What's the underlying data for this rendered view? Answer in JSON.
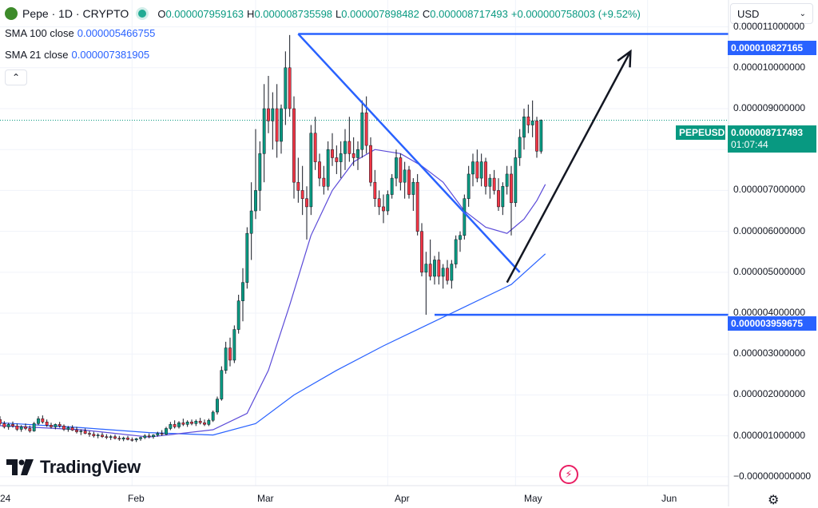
{
  "header": {
    "symbol_title": "Pepe · 1D · CRYPTO",
    "ohlc": [
      {
        "label": "O",
        "value": "0.000007959163"
      },
      {
        "label": "H",
        "value": "0.000008735598"
      },
      {
        "label": "L",
        "value": "0.000007898482"
      },
      {
        "label": "C",
        "value": "0.000008717493"
      }
    ],
    "change": "+0.000000758003 (+9.52%)",
    "currency": "USD"
  },
  "indicators": [
    {
      "name": "SMA 100 close",
      "value": "0.000005466755",
      "color": "#2962ff"
    },
    {
      "name": "SMA 21 close",
      "value": "0.000007381905",
      "color": "#5b4ad8"
    }
  ],
  "price_axis": {
    "labels": [
      "0.000011000000",
      "0.000010000000",
      "0.000009000000",
      "0.000008000000",
      "0.000007000000",
      "0.000006000000",
      "0.000005000000",
      "0.000004000000",
      "0.000003000000",
      "0.000002000000",
      "0.000001000000",
      "−0.000000000000"
    ],
    "tags": [
      {
        "text": "0.000010827165",
        "color": "#2962ff"
      },
      {
        "text": "0.000003959675",
        "color": "#2962ff"
      }
    ],
    "current": {
      "symbol": "PEPEUSD",
      "price": "0.000008717493",
      "countdown": "01:07:44",
      "color": "#089981"
    }
  },
  "time_axis": {
    "labels": [
      "24",
      "Feb",
      "Mar",
      "Apr",
      "May",
      "Jun"
    ]
  },
  "branding": {
    "name": "TradingView"
  },
  "chart_data": {
    "type": "candlestick",
    "x_range": [
      "2024-01-01",
      "2024-06-20"
    ],
    "ylim": [
      -1e-07,
      1.15e-05
    ],
    "candles_start": "2024-01-01",
    "candles": [
      [
        1.4e-06,
        1.48e-06,
        1.26e-06,
        1.3e-06
      ],
      [
        1.3e-06,
        1.36e-06,
        1.18e-06,
        1.22e-06
      ],
      [
        1.22e-06,
        1.32e-06,
        1.15e-06,
        1.28e-06
      ],
      [
        1.28e-06,
        1.35e-06,
        1.2e-06,
        1.24e-06
      ],
      [
        1.24e-06,
        1.3e-06,
        1.12e-06,
        1.16e-06
      ],
      [
        1.16e-06,
        1.26e-06,
        1.1e-06,
        1.22e-06
      ],
      [
        1.22e-06,
        1.3e-06,
        1.14e-06,
        1.18e-06
      ],
      [
        1.18e-06,
        1.25e-06,
        1.08e-06,
        1.12e-06
      ],
      [
        1.12e-06,
        1.34e-06,
        1.1e-06,
        1.3e-06
      ],
      [
        1.3e-06,
        1.48e-06,
        1.26e-06,
        1.42e-06
      ],
      [
        1.42e-06,
        1.5e-06,
        1.3e-06,
        1.34e-06
      ],
      [
        1.34e-06,
        1.4e-06,
        1.22e-06,
        1.26e-06
      ],
      [
        1.26e-06,
        1.32e-06,
        1.18e-06,
        1.22e-06
      ],
      [
        1.22e-06,
        1.3e-06,
        1.16e-06,
        1.28e-06
      ],
      [
        1.28e-06,
        1.34e-06,
        1.2e-06,
        1.24e-06
      ],
      [
        1.24e-06,
        1.28e-06,
        1.12e-06,
        1.16e-06
      ],
      [
        1.16e-06,
        1.24e-06,
        1.1e-06,
        1.2e-06
      ],
      [
        1.2e-06,
        1.26e-06,
        1.12e-06,
        1.14e-06
      ],
      [
        1.14e-06,
        1.22e-06,
        1.06e-06,
        1.1e-06
      ],
      [
        1.1e-06,
        1.16e-06,
        1.02e-06,
        1.12e-06
      ],
      [
        1.12e-06,
        1.18e-06,
        1.04e-06,
        1.06e-06
      ],
      [
        1.06e-06,
        1.12e-06,
        9.8e-07,
        1.04e-06
      ],
      [
        1.04e-06,
        1.1e-06,
        9.6e-07,
        1e-06
      ],
      [
        1e-06,
        1.06e-06,
        9.4e-07,
        1.02e-06
      ],
      [
        1.02e-06,
        1.08e-06,
        9.5e-07,
        9.8e-07
      ],
      [
        9.8e-07,
        1.04e-06,
        9.2e-07,
        9.6e-07
      ],
      [
        9.6e-07,
        1.02e-06,
        9e-07,
        9.8e-07
      ],
      [
        9.8e-07,
        1.03e-06,
        9.1e-07,
        9.4e-07
      ],
      [
        9.4e-07,
        1e-06,
        8.8e-07,
        9.2e-07
      ],
      [
        9.2e-07,
        9.8e-07,
        8.7e-07,
        9.5e-07
      ],
      [
        9.5e-07,
        1e-06,
        8.9e-07,
        9.1e-07
      ],
      [
        9.1e-07,
        9.6e-07,
        8.6e-07,
        9e-07
      ],
      [
        9e-07,
        9.5e-07,
        8.5e-07,
        9.3e-07
      ],
      [
        9.3e-07,
        9.8e-07,
        8.8e-07,
        9.6e-07
      ],
      [
        9.6e-07,
        1.04e-06,
        9.2e-07,
        1e-06
      ],
      [
        1e-06,
        1.06e-06,
        9.4e-07,
        9.8e-07
      ],
      [
        9.8e-07,
        1.04e-06,
        9.3e-07,
        1.02e-06
      ],
      [
        1.02e-06,
        1.1e-06,
        9.8e-07,
        1.06e-06
      ],
      [
        1.06e-06,
        1.14e-06,
        1e-06,
        1.04e-06
      ],
      [
        1.04e-06,
        1.22e-06,
        1.02e-06,
        1.18e-06
      ],
      [
        1.18e-06,
        1.34e-06,
        1.14e-06,
        1.28e-06
      ],
      [
        1.28e-06,
        1.38e-06,
        1.18e-06,
        1.22e-06
      ],
      [
        1.22e-06,
        1.36e-06,
        1.18e-06,
        1.32e-06
      ],
      [
        1.32e-06,
        1.42e-06,
        1.24e-06,
        1.28e-06
      ],
      [
        1.28e-06,
        1.38e-06,
        1.22e-06,
        1.34e-06
      ],
      [
        1.34e-06,
        1.4e-06,
        1.26e-06,
        1.3e-06
      ],
      [
        1.3e-06,
        1.4e-06,
        1.24e-06,
        1.36e-06
      ],
      [
        1.36e-06,
        1.44e-06,
        1.28e-06,
        1.32e-06
      ],
      [
        1.32e-06,
        1.4e-06,
        1.24e-06,
        1.28e-06
      ],
      [
        1.28e-06,
        1.42e-06,
        1.24e-06,
        1.38e-06
      ],
      [
        1.38e-06,
        1.62e-06,
        1.34e-06,
        1.58e-06
      ],
      [
        1.58e-06,
        1.96e-06,
        1.52e-06,
        1.9e-06
      ],
      [
        1.9e-06,
        2.7e-06,
        1.86e-06,
        2.6e-06
      ],
      [
        2.6e-06,
        3.3e-06,
        2.52e-06,
        3.15e-06
      ],
      [
        3.15e-06,
        3.4e-06,
        2.7e-06,
        2.85e-06
      ],
      [
        2.85e-06,
        3.7e-06,
        2.78e-06,
        3.6e-06
      ],
      [
        3.6e-06,
        4.45e-06,
        3.5e-06,
        4.3e-06
      ],
      [
        4.3e-06,
        5.1e-06,
        3.8e-06,
        4.75e-06
      ],
      [
        4.75e-06,
        6.1e-06,
        4.6e-06,
        5.95e-06
      ],
      [
        5.95e-06,
        7.2e-06,
        5.3e-06,
        6.5e-06
      ],
      [
        6.5e-06,
        8.5e-06,
        6.3e-06,
        7e-06
      ],
      [
        7e-06,
        8.2e-06,
        6.5e-06,
        7.9e-06
      ],
      [
        7.9e-06,
        9.6e-06,
        7.2e-06,
        9e-06
      ],
      [
        9e-06,
        9.8e-06,
        8.4e-06,
        8.7e-06
      ],
      [
        8.7e-06,
        9.4e-06,
        8e-06,
        9e-06
      ],
      [
        9e-06,
        9.6e-06,
        7.8e-06,
        8.2e-06
      ],
      [
        8.2e-06,
        9.1e-06,
        7.9e-06,
        9e-06
      ],
      [
        9e-06,
        1.04e-05,
        8.6e-06,
        1e-05
      ],
      [
        1e-05,
        1.08e-05,
        8.8e-06,
        9e-06
      ],
      [
        9e-06,
        9.3e-06,
        6.8e-06,
        7.2e-06
      ],
      [
        7.2e-06,
        7.8e-06,
        6.7e-06,
        7e-06
      ],
      [
        7e-06,
        7.6e-06,
        6.4e-06,
        6.8e-06
      ],
      [
        6.8e-06,
        7.1e-06,
        5.8e-06,
        6.6e-06
      ],
      [
        6.6e-06,
        8.6e-06,
        6.4e-06,
        8.4e-06
      ],
      [
        8.4e-06,
        8.8e-06,
        7.5e-06,
        7.7e-06
      ],
      [
        7.7e-06,
        7.9e-06,
        7.1e-06,
        7.3e-06
      ],
      [
        7.3e-06,
        7.6e-06,
        6.9e-06,
        7.1e-06
      ],
      [
        7.1e-06,
        8.2e-06,
        7e-06,
        8e-06
      ],
      [
        8e-06,
        8.4e-06,
        7.6e-06,
        7.8e-06
      ],
      [
        7.8e-06,
        8.1e-06,
        7.4e-06,
        7.7e-06
      ],
      [
        7.7e-06,
        8.2e-06,
        7.3e-06,
        7.9e-06
      ],
      [
        7.9e-06,
        8.5e-06,
        7.5e-06,
        8.2e-06
      ],
      [
        8.2e-06,
        8.8e-06,
        7.7e-06,
        7.9e-06
      ],
      [
        7.9e-06,
        8.3e-06,
        7.6e-06,
        7.8e-06
      ],
      [
        7.8e-06,
        8.2e-06,
        7.5e-06,
        8e-06
      ],
      [
        8e-06,
        9.2e-06,
        7.8e-06,
        8.9e-06
      ],
      [
        8.9e-06,
        9.3e-06,
        7.9e-06,
        8.1e-06
      ],
      [
        8.1e-06,
        8.3e-06,
        7.1e-06,
        7.2e-06
      ],
      [
        7.2e-06,
        7.5e-06,
        6.6e-06,
        6.8e-06
      ],
      [
        6.8e-06,
        7e-06,
        6.4e-06,
        6.6e-06
      ],
      [
        6.6e-06,
        6.9e-06,
        6.2e-06,
        6.5e-06
      ],
      [
        6.5e-06,
        7e-06,
        6.4e-06,
        6.9e-06
      ],
      [
        6.9e-06,
        7.4e-06,
        6.8e-06,
        7.3e-06
      ],
      [
        7.3e-06,
        8e-06,
        7.1e-06,
        7.8e-06
      ],
      [
        7.8e-06,
        7.9e-06,
        7e-06,
        7.2e-06
      ],
      [
        7.2e-06,
        7.7e-06,
        6.8e-06,
        7.5e-06
      ],
      [
        7.5e-06,
        7.6e-06,
        6.8e-06,
        6.9e-06
      ],
      [
        6.9e-06,
        7.3e-06,
        6.5e-06,
        7.2e-06
      ],
      [
        7.2e-06,
        7.4e-06,
        5.9e-06,
        6e-06
      ],
      [
        6e-06,
        6.2e-06,
        4.9e-06,
        5e-06
      ],
      [
        5e-06,
        5.5e-06,
        3.96e-06,
        5.2e-06
      ],
      [
        5.2e-06,
        5.8e-06,
        4.8e-06,
        4.9e-06
      ],
      [
        4.9e-06,
        5.4e-06,
        4.7e-06,
        5.3e-06
      ],
      [
        5.3e-06,
        5.5e-06,
        4.7e-06,
        4.9e-06
      ],
      [
        4.9e-06,
        5.2e-06,
        4.6e-06,
        5.1e-06
      ],
      [
        5.1e-06,
        5.3e-06,
        4.7e-06,
        4.8e-06
      ],
      [
        4.8e-06,
        5.3e-06,
        4.6e-06,
        5.2e-06
      ],
      [
        5.2e-06,
        5.9e-06,
        5.1e-06,
        5.8e-06
      ],
      [
        5.8e-06,
        6e-06,
        5.5e-06,
        5.9e-06
      ],
      [
        5.9e-06,
        6.9e-06,
        5.8e-06,
        6.8e-06
      ],
      [
        6.8e-06,
        7.6e-06,
        6.6e-06,
        7.4e-06
      ],
      [
        7.4e-06,
        7.9e-06,
        7.1e-06,
        7.7e-06
      ],
      [
        7.7e-06,
        8e-06,
        7.2e-06,
        7.3e-06
      ],
      [
        7.3e-06,
        7.9e-06,
        7.1e-06,
        7.7e-06
      ],
      [
        7.7e-06,
        7.8e-06,
        6.9e-06,
        7.1e-06
      ],
      [
        7.1e-06,
        7.4e-06,
        6.8e-06,
        7.3e-06
      ],
      [
        7.3e-06,
        7.5e-06,
        6.9e-06,
        7e-06
      ],
      [
        7e-06,
        7.3e-06,
        6.5e-06,
        6.6e-06
      ],
      [
        6.6e-06,
        7.2e-06,
        6.4e-06,
        7.1e-06
      ],
      [
        7.1e-06,
        7.6e-06,
        6.9e-06,
        7.4e-06
      ],
      [
        7.4e-06,
        7.6e-06,
        5.9e-06,
        6.7e-06
      ],
      [
        6.7e-06,
        8e-06,
        6.6e-06,
        7.8e-06
      ],
      [
        7.8e-06,
        8.5e-06,
        7.6e-06,
        8.3e-06
      ],
      [
        8.3e-06,
        9e-06,
        8e-06,
        8.8e-06
      ],
      [
        8.8e-06,
        9.1e-06,
        8.4e-06,
        8.6e-06
      ],
      [
        8.6e-06,
        9.2e-06,
        8.3e-06,
        8.7e-06
      ],
      [
        8.7e-06,
        8.8e-06,
        7.8e-06,
        7.96e-06
      ],
      [
        7.959163e-06,
        8.735598e-06,
        7.898482e-06,
        8.717493e-06
      ]
    ],
    "sma21": [
      [
        "2024-01-01",
        1.25e-06
      ],
      [
        "2024-01-20",
        1.15e-06
      ],
      [
        "2024-02-05",
        9.7e-07
      ],
      [
        "2024-02-20",
        1.15e-06
      ],
      [
        "2024-02-28",
        1.55e-06
      ],
      [
        "2024-03-04",
        2.6e-06
      ],
      [
        "2024-03-09",
        4.2e-06
      ],
      [
        "2024-03-14",
        5.9e-06
      ],
      [
        "2024-03-19",
        7e-06
      ],
      [
        "2024-03-24",
        7.7e-06
      ],
      [
        "2024-03-29",
        8e-06
      ],
      [
        "2024-04-04",
        7.9e-06
      ],
      [
        "2024-04-09",
        7.6e-06
      ],
      [
        "2024-04-14",
        7.2e-06
      ],
      [
        "2024-04-19",
        6.5e-06
      ],
      [
        "2024-04-24",
        6.1e-06
      ],
      [
        "2024-04-29",
        5.95e-06
      ],
      [
        "2024-05-03",
        6.3e-06
      ],
      [
        "2024-05-06",
        6.75e-06
      ],
      [
        "2024-05-08",
        7.15e-06
      ]
    ],
    "sma100": [
      [
        "2024-01-01",
        1.32e-06
      ],
      [
        "2024-01-20",
        1.2e-06
      ],
      [
        "2024-02-05",
        1.08e-06
      ],
      [
        "2024-02-20",
        1.02e-06
      ],
      [
        "2024-03-01",
        1.3e-06
      ],
      [
        "2024-03-10",
        2e-06
      ],
      [
        "2024-03-20",
        2.6e-06
      ],
      [
        "2024-03-31",
        3.2e-06
      ],
      [
        "2024-04-10",
        3.7e-06
      ],
      [
        "2024-04-20",
        4.2e-06
      ],
      [
        "2024-04-30",
        4.7e-06
      ],
      [
        "2024-05-08",
        5.45e-06
      ]
    ],
    "drawings": {
      "resistance_level": {
        "from": "2024-03-11",
        "to": "2024-06-20",
        "y": 1.0827165e-05
      },
      "support_level": {
        "from": "2024-04-12",
        "to": "2024-06-20",
        "y": 3.959675e-06
      },
      "descending_trendline": [
        [
          "2024-03-11",
          1.0827165e-05
        ],
        [
          "2024-05-02",
          5e-06
        ]
      ],
      "projection_arrow": [
        [
          "2024-04-29",
          4.75e-06
        ],
        [
          "2024-05-28",
          1.04e-05
        ]
      ],
      "current_price_line": 8.717493e-06
    },
    "grid": true
  }
}
